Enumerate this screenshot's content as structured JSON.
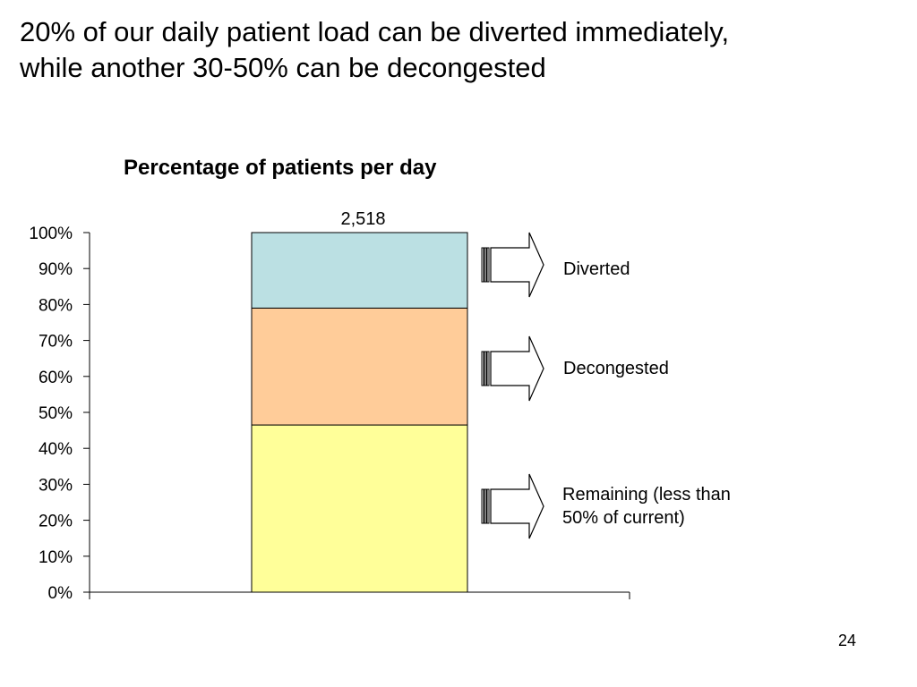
{
  "slide": {
    "title_line1": "20% of our daily patient load can be diverted immediately,",
    "title_line2": "while another 30-50% can be decongested",
    "page_number": "24"
  },
  "chart_data": {
    "type": "bar",
    "stacked": true,
    "title": "Percentage of patients per day",
    "total_label": "2,518",
    "categories": [
      ""
    ],
    "series": [
      {
        "name": "Remaining (less than 50% of current)",
        "values": [
          46.5
        ],
        "color": "#FFFF99"
      },
      {
        "name": "Decongested",
        "values": [
          32.5
        ],
        "color": "#FFCC99"
      },
      {
        "name": "Diverted",
        "values": [
          21
        ],
        "color": "#BBE0E3"
      }
    ],
    "ylim": [
      0,
      100
    ],
    "yticks": [
      "0%",
      "10%",
      "20%",
      "30%",
      "40%",
      "50%",
      "60%",
      "70%",
      "80%",
      "90%",
      "100%"
    ],
    "xlabel": "",
    "ylabel": "",
    "grid": false,
    "legend": "right, arrow callouts"
  },
  "labels": {
    "diverted": "Diverted",
    "decongested": "Decongested",
    "remaining_line1": "Remaining (less than",
    "remaining_line2": "50% of current)"
  }
}
